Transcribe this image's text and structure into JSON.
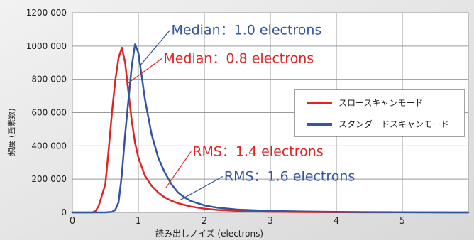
{
  "chart_data": {
    "type": "line",
    "xlabel": "読み出しノイズ (electrons)",
    "ylabel": "頻度 (画素数)",
    "xlim": [
      0,
      6
    ],
    "ylim": [
      0,
      1200000
    ],
    "xticks": [
      0,
      1,
      2,
      3,
      4,
      5
    ],
    "yticks": [
      0,
      200000,
      400000,
      600000,
      800000,
      1000000,
      1200000
    ],
    "ytick_labels": [
      "0",
      "200 000",
      "400 000",
      "600 000",
      "800 000",
      "1000 000",
      "1200 000"
    ],
    "grid": true,
    "legend_position": "right",
    "series": [
      {
        "name": "スロースキャンモード",
        "color": "#e02424",
        "points": [
          [
            0,
            0
          ],
          [
            0.3,
            0
          ],
          [
            0.35,
            8000
          ],
          [
            0.4,
            40000
          ],
          [
            0.5,
            170000
          ],
          [
            0.55,
            380000
          ],
          [
            0.6,
            600000
          ],
          [
            0.65,
            790000
          ],
          [
            0.7,
            930000
          ],
          [
            0.75,
            990000
          ],
          [
            0.8,
            900000
          ],
          [
            0.85,
            720000
          ],
          [
            0.9,
            550000
          ],
          [
            0.95,
            420000
          ],
          [
            1.0,
            330000
          ],
          [
            1.1,
            220000
          ],
          [
            1.2,
            160000
          ],
          [
            1.3,
            120000
          ],
          [
            1.4,
            90000
          ],
          [
            1.5,
            70000
          ],
          [
            1.6,
            55000
          ],
          [
            1.8,
            35000
          ],
          [
            2.0,
            22000
          ],
          [
            2.2,
            15000
          ],
          [
            2.5,
            9000
          ],
          [
            3.0,
            4000
          ],
          [
            3.5,
            2000
          ],
          [
            4.0,
            1000
          ],
          [
            5.0,
            300
          ],
          [
            6.0,
            0
          ]
        ]
      },
      {
        "name": "スタンダードスキャンモード",
        "color": "#3355a0",
        "points": [
          [
            0,
            0
          ],
          [
            0.5,
            0
          ],
          [
            0.6,
            3000
          ],
          [
            0.65,
            15000
          ],
          [
            0.7,
            60000
          ],
          [
            0.75,
            230000
          ],
          [
            0.8,
            470000
          ],
          [
            0.85,
            680000
          ],
          [
            0.9,
            880000
          ],
          [
            0.95,
            1010000
          ],
          [
            1.0,
            960000
          ],
          [
            1.05,
            820000
          ],
          [
            1.1,
            680000
          ],
          [
            1.2,
            470000
          ],
          [
            1.3,
            330000
          ],
          [
            1.4,
            240000
          ],
          [
            1.5,
            170000
          ],
          [
            1.6,
            120000
          ],
          [
            1.7,
            90000
          ],
          [
            1.8,
            68000
          ],
          [
            2.0,
            42000
          ],
          [
            2.2,
            28000
          ],
          [
            2.5,
            17000
          ],
          [
            3.0,
            9000
          ],
          [
            3.5,
            5000
          ],
          [
            4.0,
            3000
          ],
          [
            5.0,
            1000
          ],
          [
            6.0,
            0
          ]
        ]
      }
    ],
    "annotations": [
      {
        "text": "Median：1.0 electrons",
        "color": "#3355a0",
        "x": 1.5,
        "y": 1070000,
        "arrow_to": [
          1.02,
          880000
        ]
      },
      {
        "text": "Median：0.8 electrons",
        "color": "#e02424",
        "x": 1.38,
        "y": 900000,
        "arrow_to": [
          0.82,
          770000
        ]
      },
      {
        "text": "RMS：1.4 electrons",
        "color": "#e02424",
        "x": 1.82,
        "y": 340000,
        "arrow_to": [
          1.42,
          150000
        ]
      },
      {
        "text": "RMS：1.6 electrons",
        "color": "#3355a0",
        "x": 2.3,
        "y": 190000,
        "arrow_to": [
          1.62,
          72000
        ]
      }
    ]
  }
}
